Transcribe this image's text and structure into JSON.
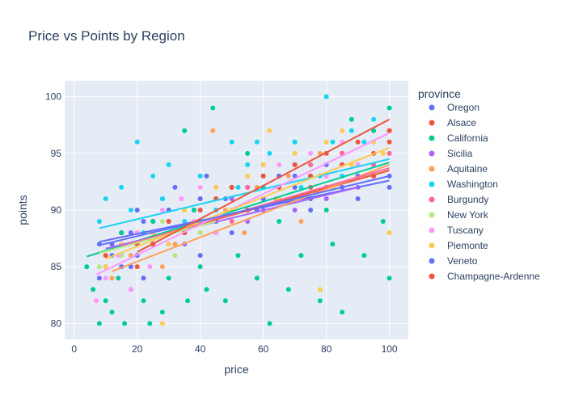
{
  "chart_data": {
    "type": "scatter",
    "title": "Price vs Points by Region",
    "xlabel": "price",
    "ylabel": "points",
    "xlim": [
      -3,
      106
    ],
    "ylim": [
      78.6,
      101.4
    ],
    "xticks": [
      0,
      20,
      40,
      60,
      80,
      100
    ],
    "yticks": [
      80,
      85,
      90,
      95,
      100
    ],
    "grid": true,
    "legend_title": "province",
    "legend_position": "right",
    "series": [
      {
        "name": "Oregon",
        "color": "#636efa",
        "points": [
          [
            8,
            87
          ],
          [
            12,
            86
          ],
          [
            15,
            88
          ],
          [
            18,
            85
          ],
          [
            20,
            90
          ],
          [
            22,
            84
          ],
          [
            25,
            89
          ],
          [
            28,
            91
          ],
          [
            30,
            87
          ],
          [
            32,
            92
          ],
          [
            35,
            88
          ],
          [
            38,
            90
          ],
          [
            40,
            86
          ],
          [
            42,
            93
          ],
          [
            45,
            89
          ],
          [
            48,
            91
          ],
          [
            50,
            88
          ],
          [
            55,
            92
          ],
          [
            58,
            90
          ],
          [
            60,
            94
          ],
          [
            65,
            91
          ],
          [
            70,
            93
          ],
          [
            75,
            90
          ],
          [
            80,
            92
          ],
          [
            85,
            94
          ],
          [
            90,
            91
          ],
          [
            95,
            93
          ],
          [
            100,
            92
          ]
        ],
        "trend": [
          [
            8,
            87.2
          ],
          [
            100,
            92.6
          ]
        ]
      },
      {
        "name": "Alsace",
        "color": "#ef553b",
        "points": [
          [
            10,
            86
          ],
          [
            15,
            88
          ],
          [
            20,
            87
          ],
          [
            25,
            89
          ],
          [
            30,
            90
          ],
          [
            35,
            88
          ],
          [
            40,
            91
          ],
          [
            45,
            89
          ],
          [
            50,
            92
          ],
          [
            55,
            90
          ],
          [
            60,
            93
          ],
          [
            65,
            91
          ],
          [
            70,
            94
          ],
          [
            75,
            92
          ],
          [
            80,
            93
          ],
          [
            85,
            95
          ],
          [
            90,
            94
          ],
          [
            95,
            93
          ],
          [
            100,
            96
          ]
        ],
        "trend": [
          [
            10,
            86.4
          ],
          [
            100,
            93.5
          ]
        ]
      },
      {
        "name": "California",
        "color": "#00cc96",
        "points": [
          [
            4,
            85
          ],
          [
            6,
            83
          ],
          [
            8,
            80
          ],
          [
            10,
            82
          ],
          [
            12,
            81
          ],
          [
            14,
            84
          ],
          [
            15,
            88
          ],
          [
            16,
            80
          ],
          [
            18,
            83
          ],
          [
            20,
            86
          ],
          [
            22,
            82
          ],
          [
            24,
            80
          ],
          [
            25,
            89
          ],
          [
            28,
            81
          ],
          [
            30,
            84
          ],
          [
            32,
            87
          ],
          [
            35,
            97
          ],
          [
            36,
            82
          ],
          [
            38,
            90
          ],
          [
            40,
            85
          ],
          [
            42,
            83
          ],
          [
            44,
            99
          ],
          [
            45,
            88
          ],
          [
            48,
            82
          ],
          [
            50,
            91
          ],
          [
            52,
            86
          ],
          [
            55,
            95
          ],
          [
            58,
            84
          ],
          [
            60,
            92
          ],
          [
            62,
            80
          ],
          [
            65,
            89
          ],
          [
            68,
            83
          ],
          [
            70,
            96
          ],
          [
            72,
            86
          ],
          [
            75,
            93
          ],
          [
            78,
            82
          ],
          [
            80,
            90
          ],
          [
            82,
            87
          ],
          [
            85,
            81
          ],
          [
            88,
            98
          ],
          [
            90,
            94
          ],
          [
            92,
            86
          ],
          [
            95,
            97
          ],
          [
            98,
            89
          ],
          [
            100,
            99
          ],
          [
            100,
            84
          ]
        ],
        "trend": [
          [
            4,
            85.9
          ],
          [
            100,
            94.2
          ]
        ]
      },
      {
        "name": "Sicilia",
        "color": "#ab63fa",
        "points": [
          [
            10,
            85
          ],
          [
            15,
            87
          ],
          [
            20,
            86
          ],
          [
            25,
            88
          ],
          [
            30,
            89
          ],
          [
            35,
            87
          ],
          [
            40,
            90
          ],
          [
            45,
            88
          ],
          [
            50,
            91
          ],
          [
            55,
            89
          ],
          [
            60,
            90
          ],
          [
            65,
            92
          ],
          [
            70,
            90
          ],
          [
            75,
            93
          ],
          [
            80,
            91
          ],
          [
            90,
            92
          ]
        ],
        "trend": [
          [
            10,
            86.6
          ],
          [
            90,
            92.0
          ]
        ]
      },
      {
        "name": "Aquitaine",
        "color": "#ffa15a",
        "points": [
          [
            12,
            84
          ],
          [
            18,
            86
          ],
          [
            22,
            88
          ],
          [
            28,
            85
          ],
          [
            32,
            87
          ],
          [
            38,
            89
          ],
          [
            44,
            97
          ],
          [
            48,
            90
          ],
          [
            54,
            88
          ],
          [
            58,
            92
          ],
          [
            64,
            91
          ],
          [
            68,
            93
          ],
          [
            72,
            89
          ],
          [
            78,
            95
          ],
          [
            82,
            92
          ],
          [
            88,
            94
          ],
          [
            92,
            93
          ],
          [
            98,
            95
          ]
        ],
        "trend": [
          [
            12,
            84.6
          ],
          [
            100,
            94.0
          ]
        ]
      },
      {
        "name": "Washington",
        "color": "#19d3f3",
        "points": [
          [
            8,
            89
          ],
          [
            10,
            91
          ],
          [
            12,
            87
          ],
          [
            15,
            92
          ],
          [
            18,
            90
          ],
          [
            20,
            96
          ],
          [
            22,
            88
          ],
          [
            25,
            93
          ],
          [
            28,
            91
          ],
          [
            30,
            94
          ],
          [
            35,
            89
          ],
          [
            40,
            93
          ],
          [
            45,
            90
          ],
          [
            50,
            96
          ],
          [
            52,
            92
          ],
          [
            55,
            94
          ],
          [
            58,
            96
          ],
          [
            60,
            91
          ],
          [
            62,
            95
          ],
          [
            65,
            93
          ],
          [
            70,
            96
          ],
          [
            72,
            92
          ],
          [
            75,
            94
          ],
          [
            78,
            93
          ],
          [
            80,
            100
          ],
          [
            82,
            96
          ],
          [
            85,
            93
          ],
          [
            88,
            97
          ],
          [
            90,
            94
          ],
          [
            92,
            96
          ],
          [
            95,
            98
          ],
          [
            100,
            97
          ]
        ],
        "trend": [
          [
            8,
            88.4
          ],
          [
            100,
            94.5
          ]
        ]
      },
      {
        "name": "Burgundy",
        "color": "#ff6692",
        "points": [
          [
            15,
            86
          ],
          [
            20,
            88
          ],
          [
            25,
            87
          ],
          [
            30,
            89
          ],
          [
            35,
            90
          ],
          [
            40,
            88
          ],
          [
            45,
            91
          ],
          [
            50,
            89
          ],
          [
            55,
            92
          ],
          [
            60,
            91
          ],
          [
            65,
            93
          ],
          [
            70,
            92
          ],
          [
            75,
            94
          ],
          [
            80,
            92
          ],
          [
            85,
            95
          ],
          [
            90,
            93
          ],
          [
            95,
            94
          ],
          [
            100,
            95
          ]
        ],
        "trend": [
          [
            15,
            86.8
          ],
          [
            100,
            93.7
          ]
        ]
      },
      {
        "name": "New York",
        "color": "#b6e880",
        "points": [
          [
            8,
            85
          ],
          [
            12,
            87
          ],
          [
            15,
            86
          ],
          [
            20,
            88
          ],
          [
            25,
            87
          ],
          [
            28,
            89
          ],
          [
            32,
            86
          ],
          [
            35,
            90
          ],
          [
            40,
            88
          ],
          [
            45,
            89
          ]
        ],
        "trend": [
          [
            8,
            86.2
          ],
          [
            45,
            89.0
          ]
        ]
      },
      {
        "name": "Tuscany",
        "color": "#ff97ff",
        "points": [
          [
            7,
            82
          ],
          [
            10,
            84
          ],
          [
            14,
            86
          ],
          [
            18,
            83
          ],
          [
            20,
            88
          ],
          [
            24,
            85
          ],
          [
            28,
            90
          ],
          [
            30,
            87
          ],
          [
            34,
            91
          ],
          [
            38,
            89
          ],
          [
            40,
            92
          ],
          [
            45,
            88
          ],
          [
            50,
            90
          ],
          [
            55,
            93
          ],
          [
            60,
            91
          ],
          [
            65,
            94
          ],
          [
            70,
            92
          ],
          [
            75,
            95
          ],
          [
            80,
            93
          ],
          [
            85,
            96
          ],
          [
            90,
            94
          ],
          [
            95,
            96
          ],
          [
            100,
            97
          ]
        ],
        "trend": [
          [
            7,
            84.3
          ],
          [
            100,
            96.8
          ]
        ]
      },
      {
        "name": "Piemonte",
        "color": "#fecb52",
        "points": [
          [
            10,
            85
          ],
          [
            15,
            87
          ],
          [
            20,
            86
          ],
          [
            25,
            88
          ],
          [
            28,
            80
          ],
          [
            30,
            87
          ],
          [
            35,
            90
          ],
          [
            40,
            89
          ],
          [
            45,
            92
          ],
          [
            50,
            90
          ],
          [
            55,
            93
          ],
          [
            60,
            94
          ],
          [
            62,
            97
          ],
          [
            65,
            91
          ],
          [
            70,
            95
          ],
          [
            75,
            93
          ],
          [
            78,
            83
          ],
          [
            80,
            96
          ],
          [
            82,
            92
          ],
          [
            85,
            97
          ],
          [
            88,
            94
          ],
          [
            90,
            93
          ],
          [
            95,
            96
          ],
          [
            98,
            95
          ],
          [
            100,
            88
          ]
        ],
        "trend": [
          [
            10,
            85.7
          ],
          [
            100,
            95.5
          ]
        ]
      },
      {
        "name": "Veneto",
        "color": "#636efa",
        "points": [
          [
            8,
            84
          ],
          [
            12,
            87
          ],
          [
            15,
            85
          ],
          [
            18,
            88
          ],
          [
            20,
            86
          ],
          [
            22,
            89
          ],
          [
            25,
            87
          ],
          [
            30,
            90
          ],
          [
            35,
            88
          ],
          [
            40,
            91
          ],
          [
            45,
            89
          ],
          [
            50,
            92
          ],
          [
            55,
            90
          ],
          [
            60,
            91
          ],
          [
            65,
            93
          ],
          [
            70,
            92
          ],
          [
            75,
            91
          ],
          [
            80,
            94
          ],
          [
            85,
            92
          ],
          [
            90,
            93
          ],
          [
            100,
            93
          ]
        ],
        "trend": [
          [
            8,
            86.9
          ],
          [
            100,
            93.0
          ]
        ]
      },
      {
        "name": "Champagne-Ardenne",
        "color": "#ef553b",
        "points": [
          [
            20,
            85
          ],
          [
            25,
            87
          ],
          [
            30,
            89
          ],
          [
            35,
            88
          ],
          [
            40,
            90
          ],
          [
            45,
            91
          ],
          [
            50,
            92
          ],
          [
            55,
            90
          ],
          [
            60,
            93
          ],
          [
            65,
            92
          ],
          [
            70,
            94
          ],
          [
            75,
            93
          ],
          [
            80,
            95
          ],
          [
            85,
            94
          ],
          [
            90,
            96
          ],
          [
            95,
            95
          ],
          [
            100,
            97
          ]
        ],
        "trend": [
          [
            20,
            86.3
          ],
          [
            100,
            98.0
          ]
        ]
      }
    ]
  }
}
